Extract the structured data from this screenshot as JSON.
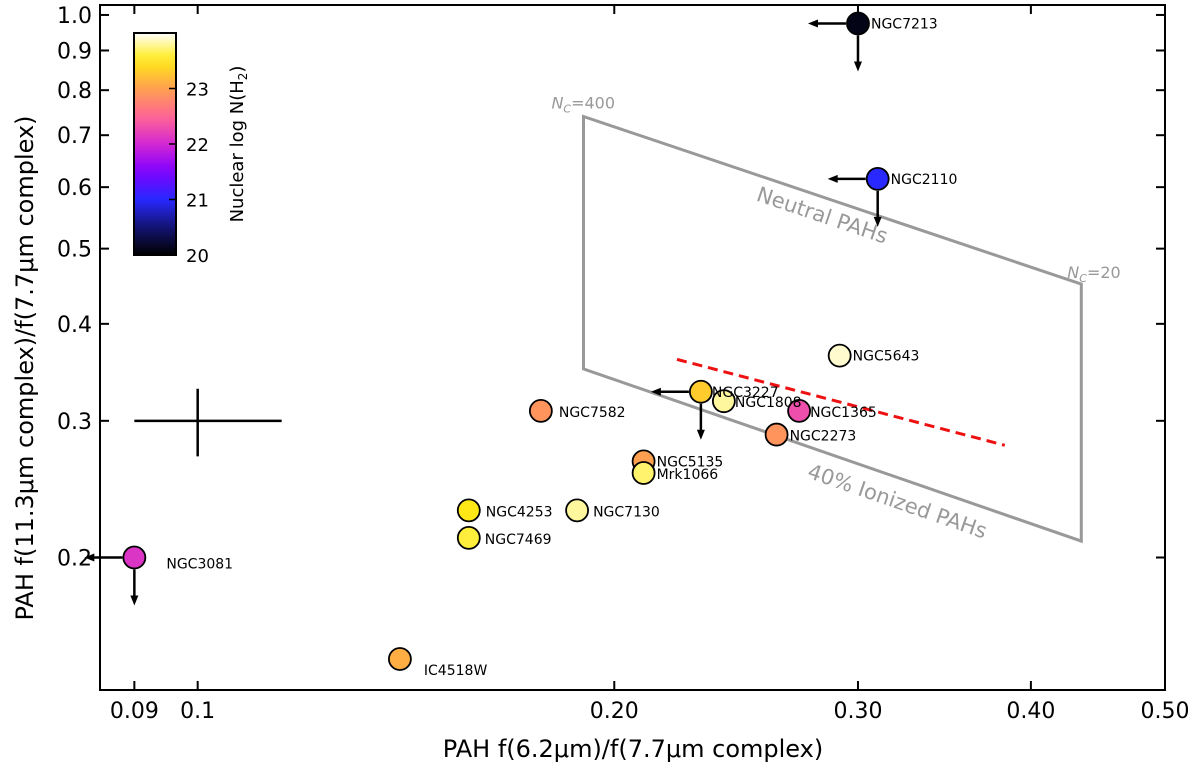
{
  "chart_data": {
    "type": "scatter",
    "xlabel": "PAH f(6.2μm)/f(7.7μm complex)",
    "ylabel": "PAH f(11.3μm complex)/f(7.7μm complex)",
    "xscale": "log",
    "yscale": "log",
    "xlim": [
      0.085,
      0.5
    ],
    "ylim": [
      0.135,
      1.03
    ],
    "xticks": [
      0.09,
      0.1,
      0.2,
      0.3,
      0.4,
      0.5
    ],
    "xtick_labels": [
      "0.09",
      "0.1",
      "0.20",
      "0.30",
      "0.40",
      "0.50"
    ],
    "yticks": [
      0.2,
      0.3,
      0.4,
      0.5,
      0.6,
      0.7,
      0.8,
      0.9,
      1.0
    ],
    "ytick_labels": [
      "0.2",
      "0.3",
      "0.4",
      "0.5",
      "0.6",
      "0.7",
      "0.8",
      "0.9",
      "1.0"
    ],
    "colorbar": {
      "label": "Nuclear log N(H",
      "label_sub": "2",
      "label_close": ")",
      "range": [
        20,
        24
      ],
      "ticks": [
        20,
        21,
        22,
        23
      ],
      "colormap": "plasma-like (black-blue-purple-pink-orange-yellow-white)",
      "location": "top-left"
    },
    "points": [
      {
        "name": "NGC7213",
        "x": 0.3,
        "y": 0.975,
        "logNH2": 20.1,
        "upper_x": true,
        "upper_y": true
      },
      {
        "name": "NGC2110",
        "x": 0.31,
        "y": 0.615,
        "logNH2": 21.0,
        "upper_x": true,
        "upper_y": true
      },
      {
        "name": "NGC5643",
        "x": 0.291,
        "y": 0.364,
        "logNH2": 23.9,
        "upper_x": false,
        "upper_y": false
      },
      {
        "name": "NGC3227",
        "x": 0.231,
        "y": 0.327,
        "logNH2": 23.3,
        "upper_x": true,
        "upper_y": true
      },
      {
        "name": "NGC1808",
        "x": 0.24,
        "y": 0.318,
        "logNH2": 23.8,
        "upper_x": false,
        "upper_y": false
      },
      {
        "name": "NGC1365",
        "x": 0.272,
        "y": 0.309,
        "logNH2": 22.3,
        "upper_x": false,
        "upper_y": false
      },
      {
        "name": "NGC2273",
        "x": 0.262,
        "y": 0.288,
        "logNH2": 22.9,
        "upper_x": false,
        "upper_y": false
      },
      {
        "name": "NGC7582",
        "x": 0.177,
        "y": 0.309,
        "logNH2": 22.9,
        "upper_x": false,
        "upper_y": false
      },
      {
        "name": "NGC5135",
        "x": 0.21,
        "y": 0.266,
        "logNH2": 23.0,
        "upper_x": false,
        "upper_y": false
      },
      {
        "name": "Mrk1066",
        "x": 0.21,
        "y": 0.257,
        "logNH2": 23.7,
        "upper_x": false,
        "upper_y": false
      },
      {
        "name": "NGC4253",
        "x": 0.157,
        "y": 0.23,
        "logNH2": 23.5,
        "upper_x": false,
        "upper_y": false
      },
      {
        "name": "NGC7130",
        "x": 0.188,
        "y": 0.23,
        "logNH2": 23.8,
        "upper_x": false,
        "upper_y": false
      },
      {
        "name": "NGC7469",
        "x": 0.157,
        "y": 0.212,
        "logNH2": 23.6,
        "upper_x": false,
        "upper_y": false
      },
      {
        "name": "NGC3081",
        "x": 0.09,
        "y": 0.2,
        "logNH2": 22.1,
        "upper_x": true,
        "upper_y": true
      },
      {
        "name": "IC4518W",
        "x": 0.14,
        "y": 0.148,
        "logNH2": 23.1,
        "upper_x": false,
        "upper_y": false
      }
    ],
    "error_bar": {
      "x": 0.1,
      "y": 0.3,
      "x_minus": 0.01,
      "x_plus": 0.015,
      "y_minus": 0.03,
      "y_plus": 0.03
    },
    "model_grid": {
      "corners": [
        {
          "x": 0.19,
          "y": 0.74
        },
        {
          "x": 0.435,
          "y": 0.45
        },
        {
          "x": 0.435,
          "y": 0.21
        },
        {
          "x": 0.19,
          "y": 0.35
        }
      ],
      "label_nc_high_prefix": "N",
      "label_nc_high_sub": "C",
      "label_nc_high_value": "=400",
      "label_nc_low_prefix": "N",
      "label_nc_low_sub": "C",
      "label_nc_low_value": "=20",
      "label_neutral": "Neutral PAHs",
      "label_ionized": "40% Ionized PAHs"
    },
    "fit_line": {
      "x": [
        0.222,
        0.383
      ],
      "y": [
        0.36,
        0.279
      ],
      "style": "red dashed"
    }
  },
  "colors": {
    "grid_outline": "#999999",
    "fit_line": "#ee1111",
    "axis": "#000000"
  }
}
